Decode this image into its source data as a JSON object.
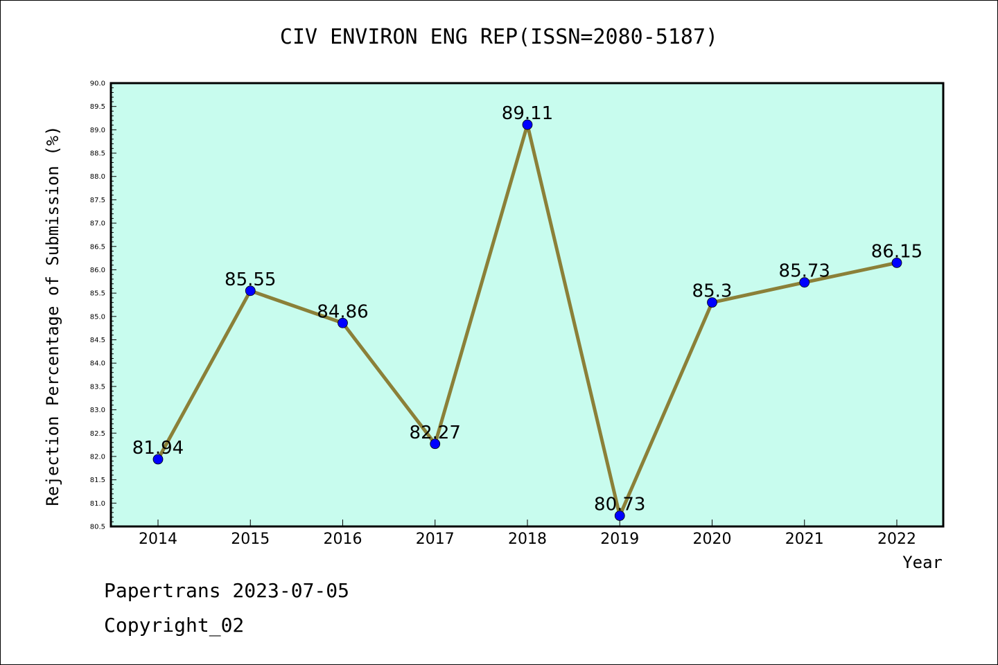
{
  "chart_data": {
    "type": "line",
    "title": "CIV ENVIRON ENG REP(ISSN=2080-5187)",
    "xlabel": "Year",
    "ylabel": "Rejection Percentage of Submission (%)",
    "categories": [
      "2014",
      "2015",
      "2016",
      "2017",
      "2018",
      "2019",
      "2020",
      "2021",
      "2022"
    ],
    "values": [
      81.94,
      85.55,
      84.86,
      82.27,
      89.11,
      80.73,
      85.3,
      85.73,
      86.15
    ],
    "data_labels": [
      "81.94",
      "85.55",
      "84.86",
      "82.27",
      "89.11",
      "80.73",
      "85.3",
      "85.73",
      "86.15"
    ],
    "ylim": [
      80.5,
      90.0
    ],
    "yticks": [
      "80.5",
      "81.0",
      "81.5",
      "82.0",
      "82.5",
      "83.0",
      "83.5",
      "84.0",
      "84.5",
      "85.0",
      "85.5",
      "86.0",
      "86.5",
      "87.0",
      "87.5",
      "88.0",
      "88.5",
      "89.0",
      "89.5",
      "90.0"
    ],
    "grid": false,
    "colors": {
      "plot_background": "#c8fcee",
      "line": "#8b8038",
      "marker": "#0000ff"
    }
  },
  "footer": {
    "line1": "Papertrans 2023-07-05",
    "line2": "Copyright_02"
  }
}
